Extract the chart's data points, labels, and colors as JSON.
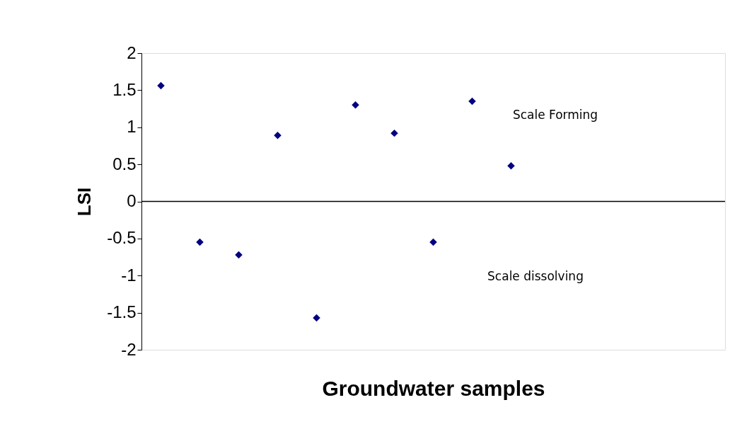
{
  "chart_data": {
    "type": "scatter",
    "xlabel": "Groundwater samples",
    "ylabel": "LSI",
    "categories": [
      null,
      null,
      null,
      null,
      null,
      null,
      null,
      null,
      null,
      null,
      null,
      null,
      null,
      null,
      null
    ],
    "series": [
      {
        "color": "#000080",
        "values": [
          1.56,
          -0.55,
          -0.72,
          0.89,
          -1.57,
          1.3,
          0.92,
          -0.55,
          1.35,
          0.48,
          null,
          null,
          null,
          null,
          null
        ]
      }
    ],
    "marker": "diamond",
    "ylim": [
      -2,
      2
    ],
    "yticks": [
      -2,
      -1.5,
      -1,
      -0.5,
      0,
      0.5,
      1,
      1.5,
      2
    ],
    "ref_lines": [
      {
        "axis": "y",
        "value": 0,
        "color": "#000000"
      }
    ],
    "annotations": [
      "Scale Forming",
      "Scale dissolving"
    ],
    "grid": false,
    "tick_labels": "y"
  }
}
